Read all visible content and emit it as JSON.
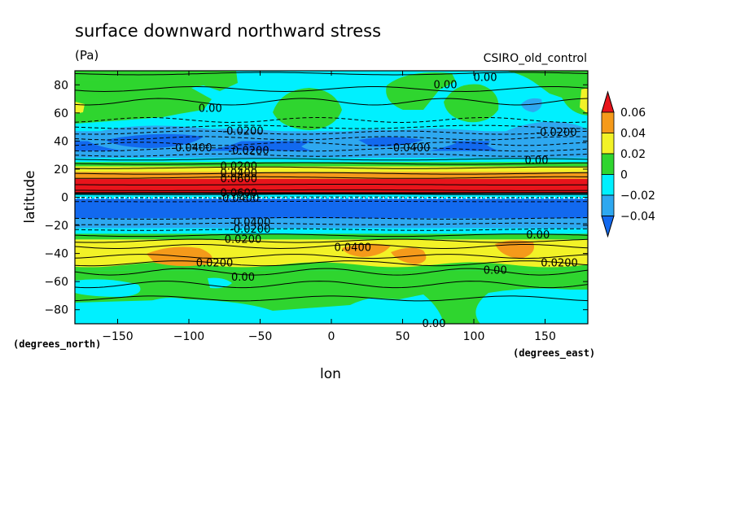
{
  "chart_data": {
    "type": "heatmap",
    "title": "surface downward northward stress",
    "units": "(Pa)",
    "model": "CSIRO_old_control",
    "xlabel": "lon",
    "ylabel": "latitude",
    "x_unit_label": "(degrees_east)",
    "y_unit_label": "(degrees_north)",
    "xlim": [
      -180,
      180
    ],
    "ylim": [
      -90,
      90
    ],
    "xticks": [
      -150,
      -100,
      -50,
      0,
      50,
      100,
      150
    ],
    "yticks": [
      -80,
      -60,
      -40,
      -20,
      0,
      20,
      40,
      60,
      80
    ],
    "colorbar": {
      "levels": [
        0.06,
        0.04,
        0.02,
        0,
        -0.02,
        -0.04
      ],
      "labels": [
        "0.06",
        "0.04",
        "0.02",
        "0",
        "−0.02",
        "−0.04"
      ],
      "colors": [
        "#e8141b",
        "#f59a1a",
        "#f2f227",
        "#2fd52f",
        "#00f0ff",
        "#2ea8f0",
        "#1269ef"
      ]
    },
    "contour_labels": [
      {
        "text": "0.00",
        "lon": -85,
        "lat": 63
      },
      {
        "text": "0.00",
        "lon": 80,
        "lat": 80
      },
      {
        "text": "0.00",
        "lon": 108,
        "lat": 85
      },
      {
        "text": "-0.0200",
        "lon": -62,
        "lat": 47
      },
      {
        "text": "-0.0200",
        "lon": 158,
        "lat": 46
      },
      {
        "text": "-0.0400",
        "lon": -98,
        "lat": 35
      },
      {
        "text": "-0.0400",
        "lon": 55,
        "lat": 35
      },
      {
        "text": "-0.0200",
        "lon": -58,
        "lat": 33
      },
      {
        "text": "0.00",
        "lon": 144,
        "lat": 26
      },
      {
        "text": "0.0200",
        "lon": -65,
        "lat": 22
      },
      {
        "text": "0.0400",
        "lon": -65,
        "lat": 17
      },
      {
        "text": "0.0600",
        "lon": -65,
        "lat": 13
      },
      {
        "text": "0.0600",
        "lon": -65,
        "lat": 3
      },
      {
        "text": "-0.0400",
        "lon": -65,
        "lat": -1
      },
      {
        "text": "-0.0400",
        "lon": -57,
        "lat": -18
      },
      {
        "text": "-0.0200",
        "lon": -57,
        "lat": -23
      },
      {
        "text": "0.0200",
        "lon": -62,
        "lat": -30
      },
      {
        "text": "0.00",
        "lon": 145,
        "lat": -27
      },
      {
        "text": "0.0400",
        "lon": 15,
        "lat": -36
      },
      {
        "text": "0.0200",
        "lon": -82,
        "lat": -47
      },
      {
        "text": "0.0200",
        "lon": 160,
        "lat": -47
      },
      {
        "text": "0.00",
        "lon": 115,
        "lat": -52
      },
      {
        "text": "0.00",
        "lon": -62,
        "lat": -57
      },
      {
        "text": "0.00",
        "lon": 72,
        "lat": -90
      }
    ]
  }
}
